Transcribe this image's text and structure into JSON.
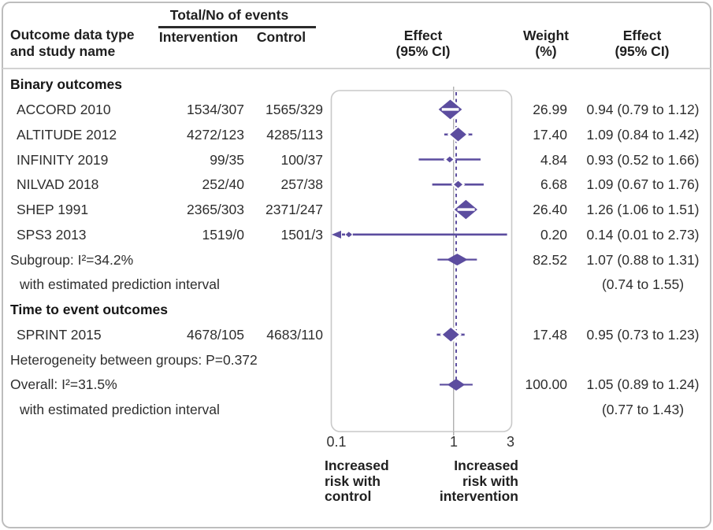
{
  "figure": {
    "header": {
      "events_group_label": "Total/No of events",
      "outcome_col_label": "Outcome data type\nand study name",
      "intervention_col_label": "Intervention",
      "control_col_label": "Control",
      "plot_col_label": "Effect\n(95% CI)",
      "weight_col_label": "Weight\n(%)",
      "effect_col_label": "Effect\n(95% CI)"
    },
    "axis": {
      "tick_labels": [
        "0.1",
        "1",
        "3"
      ],
      "left_direction_label": "Increased\nrisk with\ncontrol",
      "right_direction_label": "Increased\nrisk with\nintervention"
    },
    "colors": {
      "marker_purple": "#5c4d9f",
      "frame_gray": "#c9c9c9",
      "null_line_gray": "#b0b0b0",
      "text_dark": "#2b2b2b"
    }
  },
  "chart_data": {
    "type": "forest",
    "x_scale": "log",
    "x_min": 0.1,
    "x_max": 3,
    "x_ticks": [
      0.1,
      1,
      3
    ],
    "null_value": 1,
    "overall_estimate_line": 1.05,
    "rows": [
      {
        "kind": "section",
        "label": "Binary outcomes"
      },
      {
        "kind": "study",
        "label": "ACCORD 2010",
        "intervention": "1534/307",
        "control": "1565/329",
        "weight": "26.99",
        "effect_text": "0.94 (0.79 to 1.12)",
        "est": 0.94,
        "lo": 0.79,
        "hi": 1.12
      },
      {
        "kind": "study",
        "label": "ALTITUDE 2012",
        "intervention": "4272/123",
        "control": "4285/113",
        "weight": "17.40",
        "effect_text": "1.09 (0.84 to 1.42)",
        "est": 1.09,
        "lo": 0.84,
        "hi": 1.42
      },
      {
        "kind": "study",
        "label": "INFINITY 2019",
        "intervention": "99/35",
        "control": "100/37",
        "weight": "4.84",
        "effect_text": "0.93 (0.52 to 1.66)",
        "est": 0.93,
        "lo": 0.52,
        "hi": 1.66
      },
      {
        "kind": "study",
        "label": "NILVAD 2018",
        "intervention": "252/40",
        "control": "257/38",
        "weight": "6.68",
        "effect_text": "1.09 (0.67 to 1.76)",
        "est": 1.09,
        "lo": 0.67,
        "hi": 1.76
      },
      {
        "kind": "study",
        "label": "SHEP 1991",
        "intervention": "2365/303",
        "control": "2371/247",
        "weight": "26.40",
        "effect_text": "1.26 (1.06 to 1.51)",
        "est": 1.26,
        "lo": 1.06,
        "hi": 1.51
      },
      {
        "kind": "study",
        "label": "SPS3 2013",
        "intervention": "1519/0",
        "control": "1501/3",
        "weight": "0.20",
        "effect_text": "0.14 (0.01 to 2.73)",
        "est": 0.14,
        "lo": 0.01,
        "hi": 2.73,
        "arrow_lo": true
      },
      {
        "kind": "summary",
        "label": "Subgroup: I²=34.2%",
        "weight": "82.52",
        "effect_text": "1.07 (0.88 to 1.31)",
        "est": 1.07,
        "lo": 0.88,
        "hi": 1.31,
        "pi_lo": 0.74,
        "pi_hi": 1.55
      },
      {
        "kind": "plain",
        "indent": true,
        "label": "with estimated prediction interval",
        "effect_text": "(0.74 to 1.55)"
      },
      {
        "kind": "section",
        "label": "Time to event outcomes"
      },
      {
        "kind": "study",
        "label": "SPRINT 2015",
        "intervention": "4678/105",
        "control": "4683/110",
        "weight": "17.48",
        "effect_text": "0.95 (0.73 to 1.23)",
        "est": 0.95,
        "lo": 0.73,
        "hi": 1.23
      },
      {
        "kind": "plain",
        "label": "Heterogeneity between groups: P=0.372"
      },
      {
        "kind": "summary",
        "label": "Overall: I²=31.5%",
        "weight": "100.00",
        "effect_text": "1.05 (0.89 to 1.24)",
        "est": 1.05,
        "lo": 0.89,
        "hi": 1.24,
        "pi_lo": 0.77,
        "pi_hi": 1.43
      },
      {
        "kind": "plain",
        "indent": true,
        "label": "with estimated prediction interval",
        "effect_text": "(0.77 to 1.43)"
      }
    ]
  }
}
